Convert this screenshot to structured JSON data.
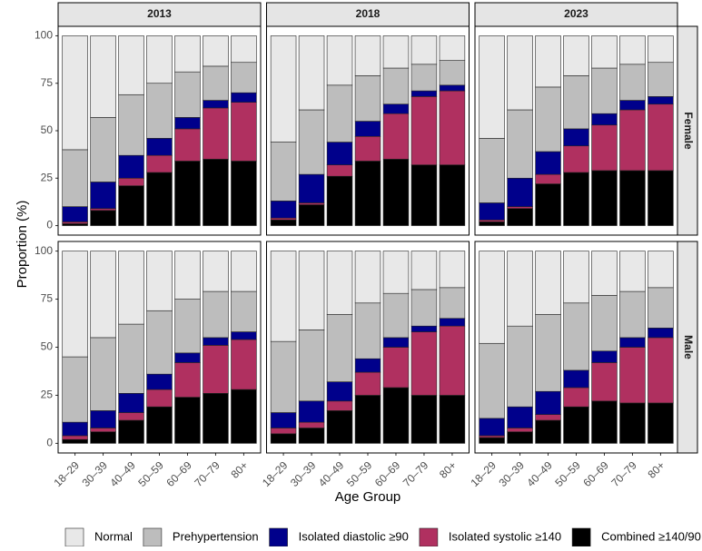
{
  "chart_data": {
    "type": "bar",
    "stacked": true,
    "columns": [
      "2013",
      "2018",
      "2023"
    ],
    "rows": [
      "Female",
      "Male"
    ],
    "ylabel": "Proportion (%)",
    "xlabel": "Age Group",
    "ylim": [
      0,
      100
    ],
    "yticks": [
      0,
      25,
      50,
      75,
      100
    ],
    "grid": false,
    "legend": "bottom",
    "categories": [
      "18–29",
      "30–39",
      "40–49",
      "50–59",
      "60–69",
      "70–79",
      "80+"
    ],
    "series": [
      {
        "name": "Normal",
        "color": "#e8e8e8",
        "values": [
          [
            [
              60,
              43,
              31,
              25,
              19,
              16,
              14
            ],
            [
              56,
              39,
              26,
              21,
              17,
              15,
              13
            ],
            [
              54,
              39,
              27,
              21,
              17,
              15,
              14
            ]
          ],
          [
            [
              55,
              45,
              38,
              31,
              25,
              21,
              21
            ],
            [
              47,
              41,
              33,
              27,
              22,
              20,
              19
            ],
            [
              48,
              39,
              33,
              27,
              23,
              21,
              19
            ]
          ]
        ]
      },
      {
        "name": "Prehypertension",
        "color": "#bdbdbd",
        "values": [
          [
            [
              30,
              34,
              32,
              29,
              24,
              18,
              16
            ],
            [
              31,
              34,
              30,
              24,
              19,
              14,
              13
            ],
            [
              34,
              36,
              34,
              28,
              24,
              19,
              18
            ]
          ],
          [
            [
              34,
              38,
              36,
              33,
              28,
              24,
              21
            ],
            [
              37,
              37,
              35,
              29,
              23,
              19,
              16
            ],
            [
              39,
              42,
              40,
              35,
              29,
              24,
              21
            ]
          ]
        ]
      },
      {
        "name": "Isolated diastolic ≥90",
        "color": "#00008b",
        "values": [
          [
            [
              8,
              14,
              12,
              9,
              6,
              4,
              5
            ],
            [
              9,
              15,
              12,
              8,
              5,
              3,
              3
            ],
            [
              9,
              15,
              12,
              9,
              6,
              5,
              4
            ]
          ],
          [
            [
              7,
              9,
              10,
              8,
              5,
              4,
              4
            ],
            [
              8,
              11,
              10,
              7,
              5,
              3,
              4
            ],
            [
              9,
              11,
              12,
              9,
              6,
              5,
              5
            ]
          ]
        ]
      },
      {
        "name": "Isolated systolic ≥140",
        "color": "#b03060",
        "values": [
          [
            [
              1,
              1,
              4,
              9,
              17,
              27,
              31
            ],
            [
              1,
              1,
              6,
              13,
              24,
              36,
              39
            ],
            [
              1,
              1,
              5,
              14,
              24,
              32,
              35
            ]
          ],
          [
            [
              2,
              2,
              4,
              9,
              18,
              25,
              26
            ],
            [
              3,
              3,
              5,
              12,
              21,
              33,
              36
            ],
            [
              1,
              2,
              3,
              10,
              20,
              29,
              34
            ]
          ]
        ]
      },
      {
        "name": "Combined ≥140/90",
        "color": "#000000",
        "values": [
          [
            [
              1,
              8,
              21,
              28,
              34,
              35,
              34
            ],
            [
              3,
              11,
              26,
              34,
              35,
              32,
              32
            ],
            [
              2,
              9,
              22,
              28,
              29,
              29,
              29
            ]
          ],
          [
            [
              2,
              6,
              12,
              19,
              24,
              26,
              28
            ],
            [
              5,
              8,
              17,
              25,
              29,
              25,
              25
            ],
            [
              3,
              6,
              12,
              19,
              22,
              21,
              21
            ]
          ]
        ]
      }
    ]
  }
}
